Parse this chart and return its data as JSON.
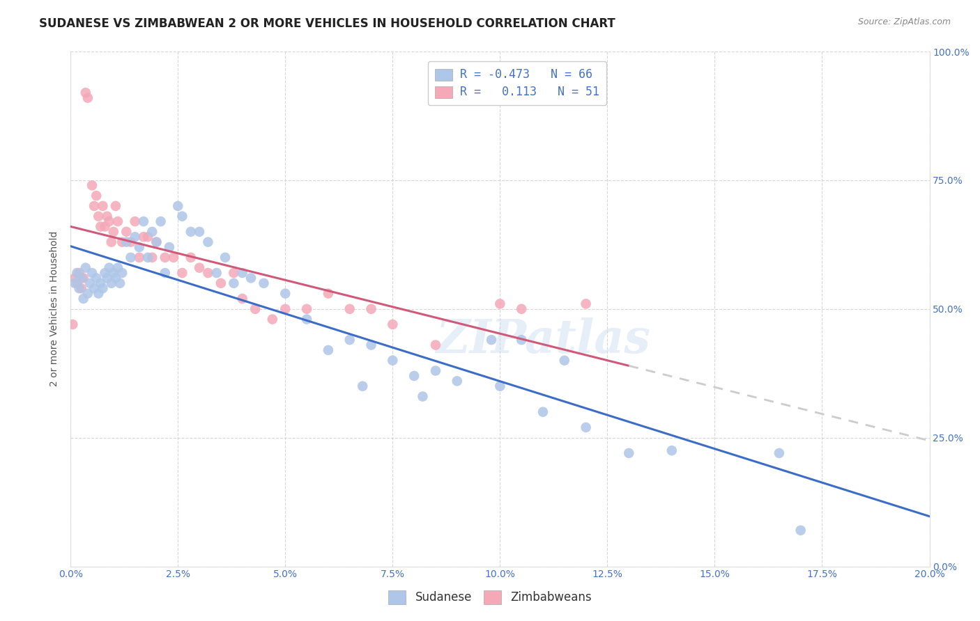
{
  "title": "SUDANESE VS ZIMBABWEAN 2 OR MORE VEHICLES IN HOUSEHOLD CORRELATION CHART",
  "source": "Source: ZipAtlas.com",
  "xlabel_vals": [
    0.0,
    2.5,
    5.0,
    7.5,
    10.0,
    12.5,
    15.0,
    17.5,
    20.0
  ],
  "ylabel": "2 or more Vehicles in Household",
  "ylabel_vals": [
    0.0,
    25.0,
    50.0,
    75.0,
    100.0
  ],
  "sudanese_R": -0.473,
  "sudanese_N": 66,
  "zimbabwean_R": 0.113,
  "zimbabwean_N": 51,
  "sudanese_color": "#aec6e8",
  "zimbabwean_color": "#f4a8b8",
  "sudanese_line_color": "#3a6cc8",
  "zimbabwean_line_color": "#d05878",
  "sudanese_x": [
    0.1,
    0.15,
    0.2,
    0.25,
    0.3,
    0.35,
    0.4,
    0.45,
    0.5,
    0.55,
    0.6,
    0.65,
    0.7,
    0.75,
    0.8,
    0.85,
    0.9,
    0.95,
    1.0,
    1.05,
    1.1,
    1.15,
    1.2,
    1.3,
    1.4,
    1.5,
    1.6,
    1.7,
    1.8,
    1.9,
    2.0,
    2.1,
    2.2,
    2.3,
    2.5,
    2.6,
    2.8,
    3.0,
    3.2,
    3.4,
    3.6,
    3.8,
    4.0,
    4.2,
    4.5,
    5.0,
    5.5,
    6.0,
    6.5,
    7.0,
    7.5,
    8.0,
    8.5,
    9.0,
    10.0,
    11.0,
    12.0,
    13.0,
    14.0,
    16.5,
    17.0,
    9.8,
    11.5,
    6.8,
    8.2,
    10.5
  ],
  "sudanese_y": [
    55.0,
    57.0,
    54.0,
    56.0,
    52.0,
    58.0,
    53.0,
    55.0,
    57.0,
    54.0,
    56.0,
    53.0,
    55.0,
    54.0,
    57.0,
    56.0,
    58.0,
    55.0,
    57.0,
    56.0,
    58.0,
    55.0,
    57.0,
    63.0,
    60.0,
    64.0,
    62.0,
    67.0,
    60.0,
    65.0,
    63.0,
    67.0,
    57.0,
    62.0,
    70.0,
    68.0,
    65.0,
    65.0,
    63.0,
    57.0,
    60.0,
    55.0,
    57.0,
    56.0,
    55.0,
    53.0,
    48.0,
    42.0,
    44.0,
    43.0,
    40.0,
    37.0,
    38.0,
    36.0,
    35.0,
    30.0,
    27.0,
    22.0,
    22.5,
    22.0,
    7.0,
    44.0,
    40.0,
    35.0,
    33.0,
    44.0
  ],
  "zimbabwean_x": [
    0.05,
    0.1,
    0.15,
    0.2,
    0.25,
    0.3,
    0.35,
    0.4,
    0.5,
    0.55,
    0.6,
    0.65,
    0.7,
    0.75,
    0.8,
    0.85,
    0.9,
    0.95,
    1.0,
    1.05,
    1.1,
    1.2,
    1.3,
    1.4,
    1.5,
    1.6,
    1.7,
    1.8,
    1.9,
    2.0,
    2.2,
    2.4,
    2.6,
    2.8,
    3.0,
    3.2,
    3.5,
    3.8,
    4.0,
    4.3,
    4.7,
    5.0,
    5.5,
    6.0,
    6.5,
    7.0,
    7.5,
    8.5,
    10.0,
    10.5,
    12.0
  ],
  "zimbabwean_y": [
    47.0,
    56.0,
    55.0,
    57.0,
    54.0,
    56.0,
    92.0,
    91.0,
    74.0,
    70.0,
    72.0,
    68.0,
    66.0,
    70.0,
    66.0,
    68.0,
    67.0,
    63.0,
    65.0,
    70.0,
    67.0,
    63.0,
    65.0,
    63.0,
    67.0,
    60.0,
    64.0,
    64.0,
    60.0,
    63.0,
    60.0,
    60.0,
    57.0,
    60.0,
    58.0,
    57.0,
    55.0,
    57.0,
    52.0,
    50.0,
    48.0,
    50.0,
    50.0,
    53.0,
    50.0,
    50.0,
    47.0,
    43.0,
    51.0,
    50.0,
    51.0
  ],
  "watermark_text": "ZIPatlas"
}
